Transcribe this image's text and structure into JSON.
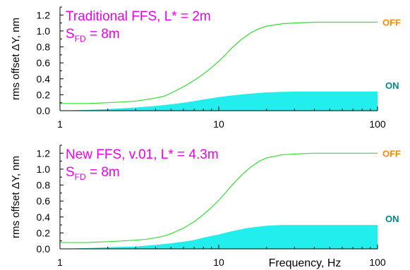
{
  "colors": {
    "off_line": "#33dd33",
    "on_fill": "#22eeee",
    "off_tag": "#ff8800",
    "on_tag": "#008888",
    "annotation": "#ee00ee",
    "axis": "#000000"
  },
  "chart_data": [
    {
      "type": "area",
      "xscale": "log",
      "xlim": [
        1,
        100
      ],
      "ylim": [
        0,
        1.3
      ],
      "xticks": [
        "1",
        "10",
        "100"
      ],
      "yticks": [
        "0.0",
        "0.2",
        "0.4",
        "0.6",
        "0.8",
        "1.0",
        "1.2"
      ],
      "ylabel": "rms offset   ΔY, nm",
      "xlabel": "",
      "annotation_line1": "Traditional FFS, L* = 2m",
      "annotation_s": "S",
      "annotation_sub": "FD",
      "annotation_rest": " = 8m",
      "series": [
        {
          "name": "OFF",
          "style": "line",
          "x": [
            1,
            1.5,
            2,
            2.5,
            3,
            3.5,
            4,
            4.5,
            5,
            6,
            7,
            8,
            9,
            10,
            11,
            12,
            14,
            16,
            18,
            20,
            25,
            30,
            40,
            50,
            70,
            100
          ],
          "y": [
            0.09,
            0.09,
            0.1,
            0.11,
            0.12,
            0.14,
            0.16,
            0.18,
            0.22,
            0.3,
            0.38,
            0.46,
            0.54,
            0.62,
            0.7,
            0.78,
            0.9,
            0.98,
            1.03,
            1.06,
            1.09,
            1.1,
            1.11,
            1.11,
            1.11,
            1.11
          ]
        },
        {
          "name": "ON",
          "style": "area",
          "x": [
            1,
            1.5,
            2,
            3,
            4,
            5,
            6,
            7,
            8,
            10,
            12,
            15,
            20,
            25,
            30,
            40,
            50,
            70,
            100
          ],
          "y": [
            0.0,
            0.01,
            0.02,
            0.04,
            0.06,
            0.08,
            0.1,
            0.12,
            0.14,
            0.17,
            0.19,
            0.21,
            0.23,
            0.235,
            0.24,
            0.24,
            0.24,
            0.24,
            0.24
          ]
        }
      ]
    },
    {
      "type": "area",
      "xscale": "log",
      "xlim": [
        1,
        100
      ],
      "ylim": [
        0,
        1.3
      ],
      "xticks": [
        "1",
        "10",
        "100"
      ],
      "yticks": [
        "0.0",
        "0.2",
        "0.4",
        "0.6",
        "0.8",
        "1.0",
        "1.2"
      ],
      "ylabel": "rms offset   ΔY, nm",
      "xlabel": "Frequency, Hz",
      "annotation_line1": "New FFS, v.01, L* = 4.3m",
      "annotation_s": "S",
      "annotation_sub": "FD",
      "annotation_rest": " = 8m",
      "series": [
        {
          "name": "OFF",
          "style": "line",
          "x": [
            1,
            1.5,
            2,
            2.5,
            3,
            3.5,
            4,
            4.5,
            5,
            6,
            7,
            8,
            9,
            10,
            11,
            12,
            14,
            16,
            18,
            20,
            25,
            30,
            40,
            50,
            70,
            100
          ],
          "y": [
            0.08,
            0.08,
            0.09,
            0.1,
            0.11,
            0.12,
            0.14,
            0.16,
            0.19,
            0.26,
            0.34,
            0.43,
            0.52,
            0.61,
            0.7,
            0.79,
            0.93,
            1.03,
            1.1,
            1.14,
            1.18,
            1.19,
            1.2,
            1.2,
            1.2,
            1.2
          ]
        },
        {
          "name": "ON",
          "style": "area",
          "x": [
            1,
            1.5,
            2,
            3,
            4,
            5,
            6,
            7,
            8,
            10,
            12,
            15,
            18,
            20,
            25,
            30,
            40,
            50,
            70,
            100
          ],
          "y": [
            0.0,
            0.01,
            0.02,
            0.03,
            0.05,
            0.07,
            0.09,
            0.11,
            0.14,
            0.18,
            0.22,
            0.26,
            0.28,
            0.29,
            0.3,
            0.3,
            0.3,
            0.3,
            0.3,
            0.3
          ]
        }
      ]
    }
  ]
}
